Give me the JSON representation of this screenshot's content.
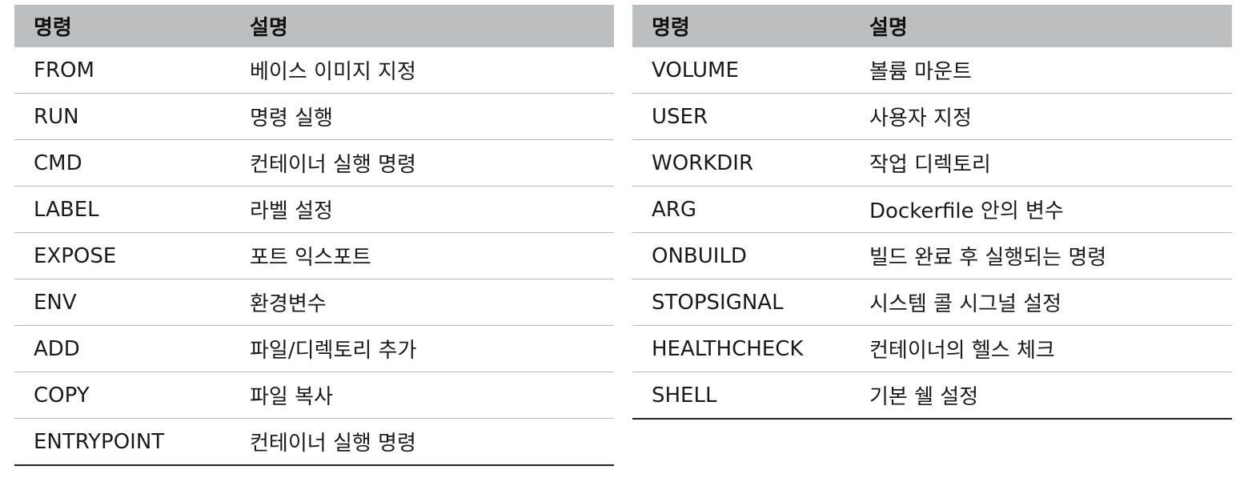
{
  "tables": [
    {
      "headers": {
        "command": "명령",
        "description": "설명"
      },
      "rows": [
        {
          "command": "FROM",
          "description": "베이스 이미지 지정"
        },
        {
          "command": "RUN",
          "description": "명령 실행"
        },
        {
          "command": "CMD",
          "description": "컨테이너 실행 명령"
        },
        {
          "command": "LABEL",
          "description": "라벨 설정"
        },
        {
          "command": "EXPOSE",
          "description": "포트 익스포트"
        },
        {
          "command": "ENV",
          "description": "환경변수"
        },
        {
          "command": "ADD",
          "description": "파일/디렉토리 추가"
        },
        {
          "command": "COPY",
          "description": "파일 복사"
        },
        {
          "command": "ENTRYPOINT",
          "description": "컨테이너 실행 명령"
        }
      ]
    },
    {
      "headers": {
        "command": "명령",
        "description": "설명"
      },
      "rows": [
        {
          "command": "VOLUME",
          "description": "볼륨 마운트"
        },
        {
          "command": "USER",
          "description": "사용자 지정"
        },
        {
          "command": "WORKDIR",
          "description": "작업 디렉토리"
        },
        {
          "command": "ARG",
          "description": "Dockerfile 안의 변수"
        },
        {
          "command": "ONBUILD",
          "description": "빌드 완료 후 실행되는 명령"
        },
        {
          "command": "STOPSIGNAL",
          "description": "시스템 콜 시그널 설정"
        },
        {
          "command": "HEALTHCHECK",
          "description": "컨테이너의 헬스 체크"
        },
        {
          "command": "SHELL",
          "description": "기본 쉘 설정"
        }
      ]
    }
  ],
  "colors": {
    "header_bg": "#bcbebf",
    "row_divider": "#b9b9b9",
    "table_bottom_rule": "#222222"
  }
}
